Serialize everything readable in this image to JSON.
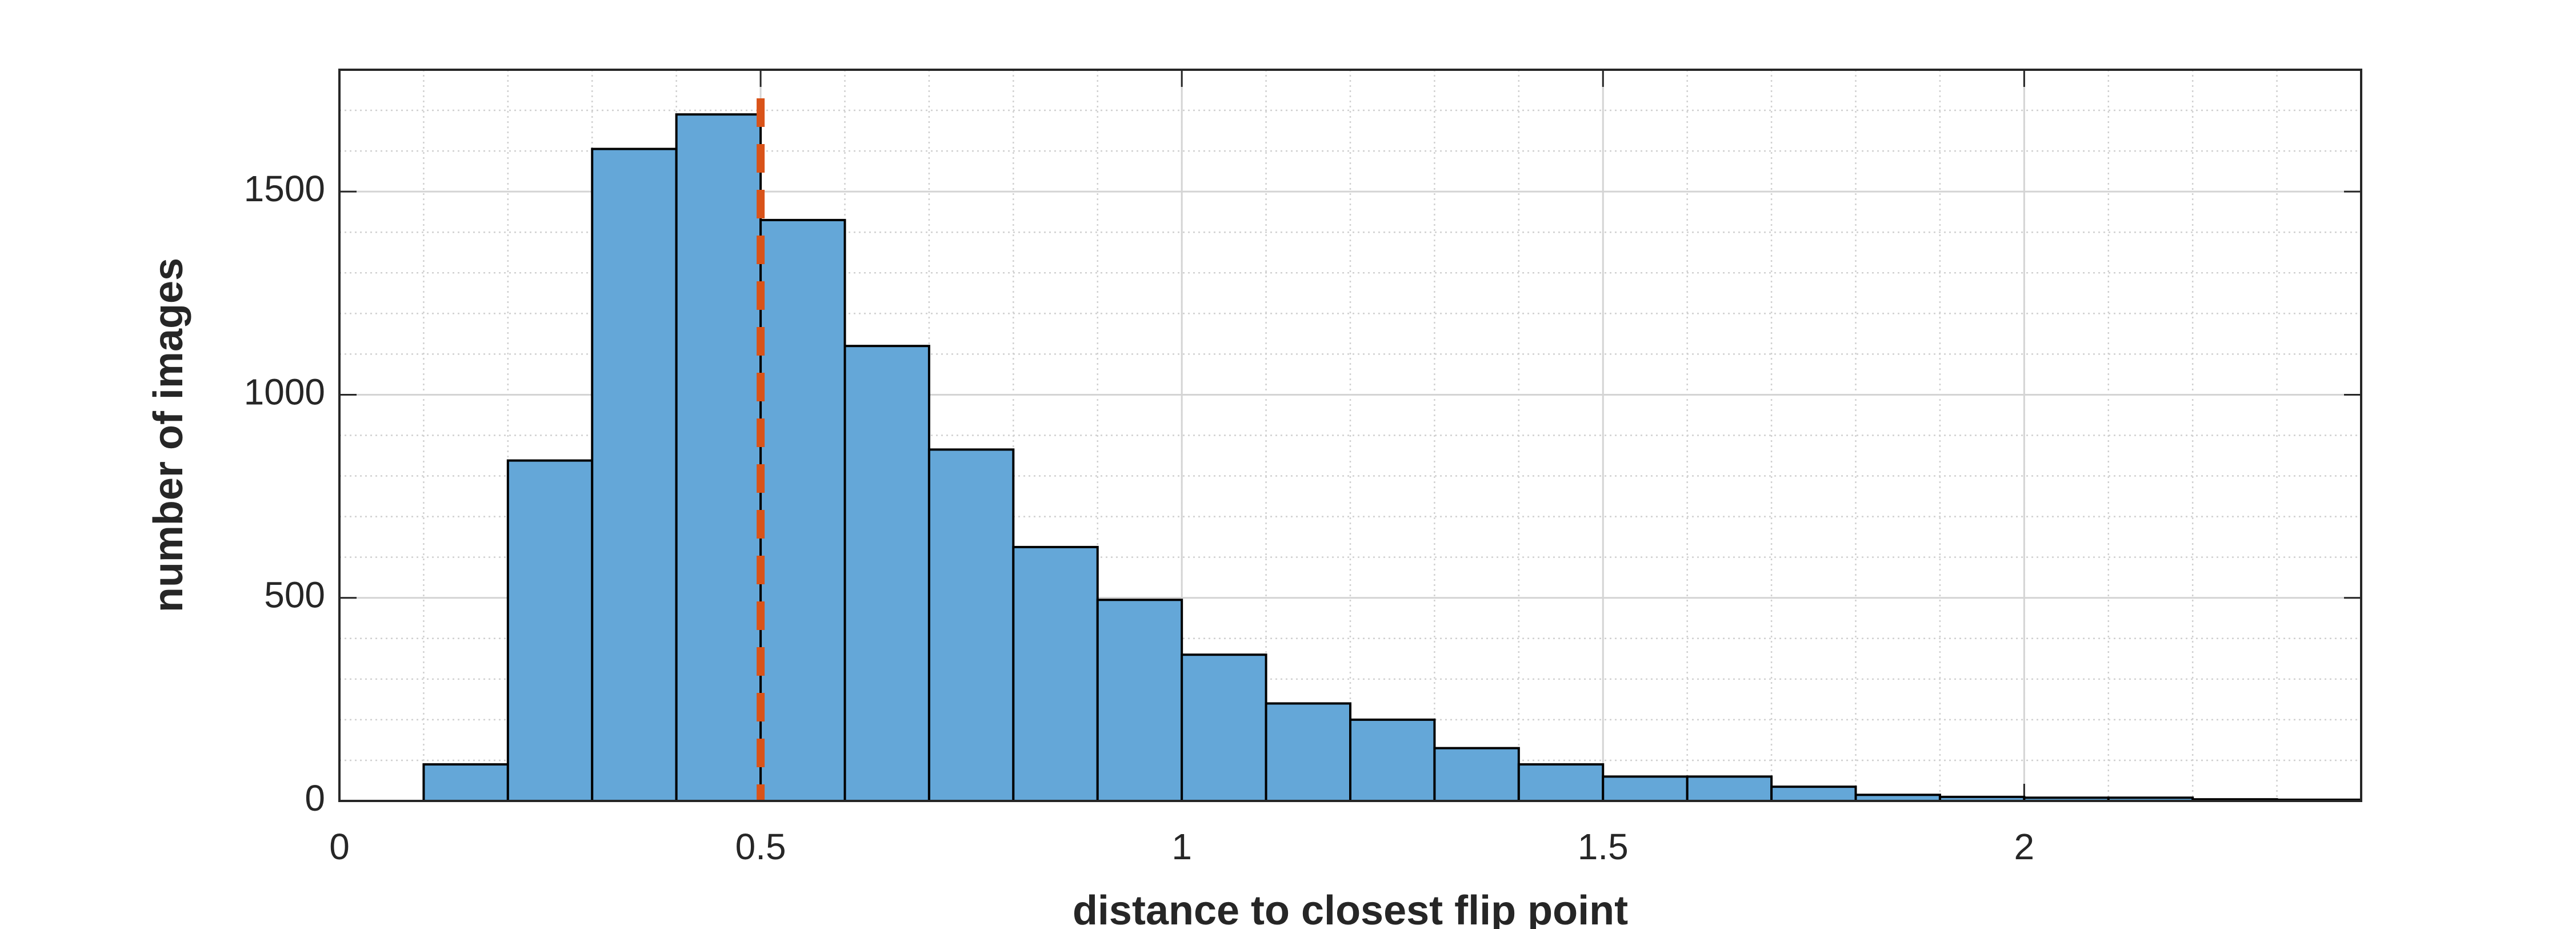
{
  "chart_data": {
    "type": "histogram",
    "xlabel": "distance to closest flip point",
    "ylabel": "number of images",
    "bins": [
      0.1,
      0.2,
      0.3,
      0.4,
      0.5,
      0.6,
      0.7,
      0.8,
      0.9,
      1.0,
      1.1,
      1.2,
      1.3,
      1.4,
      1.5,
      1.6,
      1.7,
      1.8,
      1.9,
      2.0,
      2.1,
      2.2,
      2.3,
      2.4
    ],
    "values": [
      90,
      838,
      1605,
      1690,
      1430,
      1120,
      865,
      625,
      495,
      360,
      240,
      200,
      130,
      90,
      60,
      60,
      35,
      15,
      10,
      8,
      8,
      4,
      3
    ],
    "color": "#64a7d8",
    "edgecolor": "#000000",
    "xlim": [
      0,
      2.4
    ],
    "xticks": [
      0,
      0.5,
      1,
      1.5,
      2
    ],
    "ylim": [
      0,
      1800
    ],
    "yticks": [
      0,
      500,
      1000,
      1500
    ],
    "grid": true,
    "minor_grid": true,
    "vline": {
      "x": 0.5,
      "color": "#d95319",
      "style": "dashed"
    }
  }
}
